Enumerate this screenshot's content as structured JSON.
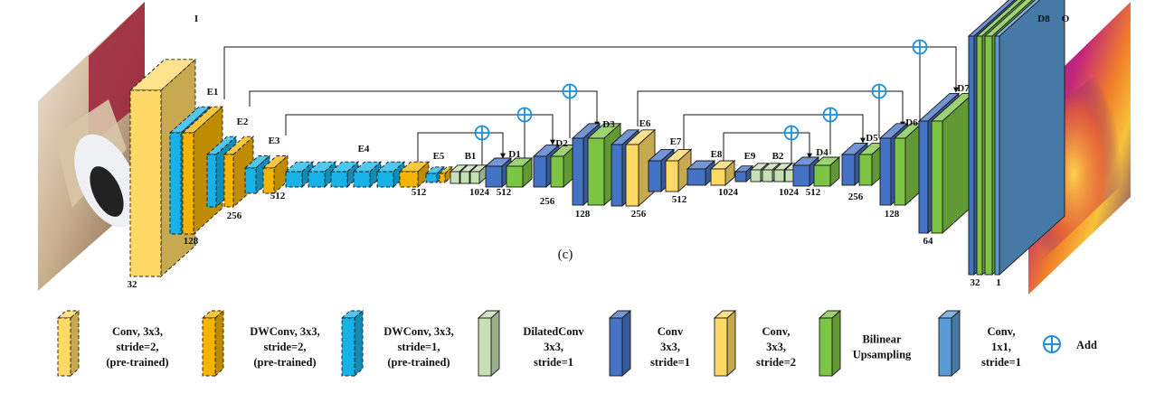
{
  "caption": "(c)",
  "colors": {
    "conv_pretrained": "#FFD966",
    "dwconv_s2": "#F5B400",
    "dwconv_s1": "#17B3E8",
    "dilated": "#C6E0B4",
    "conv3x3_s1": "#4472C4",
    "conv3x3_s2": "#FFD966",
    "bilinear": "#7CC444",
    "conv1x1": "#5B9BD5",
    "add": "#1F8FD6"
  },
  "blocks": {
    "I": "I",
    "E1": "E1",
    "E2": "E2",
    "E3": "E3",
    "E4": "E4",
    "E5": "E5",
    "B1": "B1",
    "D1": "D1",
    "D2": "D2",
    "D3": "D3",
    "E6": "E6",
    "E7": "E7",
    "E8": "E8",
    "E9": "E9",
    "B2": "B2",
    "D4": "D4",
    "D5": "D5",
    "D6": "D6",
    "D7": "D7",
    "D8": "D8",
    "O": "O"
  },
  "channels": {
    "c32a": "32",
    "c128a": "128",
    "c256a": "256",
    "c512a": "512",
    "c512b": "512",
    "c1024a": "1024",
    "c512c": "512",
    "c256b": "256",
    "c128b": "128",
    "c256c": "256",
    "c512d": "512",
    "c1024b": "1024",
    "c1024c": "1024",
    "c512e": "512",
    "c256d": "256",
    "c128c": "128",
    "c64": "64",
    "c32b": "32",
    "c1": "1"
  },
  "legend": [
    {
      "lines": [
        "Conv, 3x3,",
        "stride=2,",
        "(pre-trained)"
      ],
      "icon": "conv-pretrained-icon"
    },
    {
      "lines": [
        "DWConv, 3x3,",
        "stride=2,",
        "(pre-trained)"
      ],
      "icon": "dwconv-s2-icon"
    },
    {
      "lines": [
        "DWConv, 3x3,",
        "stride=1,",
        "(pre-trained)"
      ],
      "icon": "dwconv-s1-icon"
    },
    {
      "lines": [
        "DilatedConv",
        "3x3,",
        "stride=1"
      ],
      "icon": "dilated-conv-icon"
    },
    {
      "lines": [
        "Conv",
        "3x3,",
        "stride=1"
      ],
      "icon": "conv3x3-s1-icon"
    },
    {
      "lines": [
        "Conv,",
        "3x3,",
        "stride=2"
      ],
      "icon": "conv3x3-s2-icon"
    },
    {
      "lines": [
        "Bilinear",
        "Upsampling"
      ],
      "icon": "bilinear-icon"
    },
    {
      "lines": [
        "Conv,",
        "1x1,",
        "stride=1"
      ],
      "icon": "conv1x1-icon"
    },
    {
      "lines": [
        "Add"
      ],
      "icon": "add-icon"
    }
  ]
}
